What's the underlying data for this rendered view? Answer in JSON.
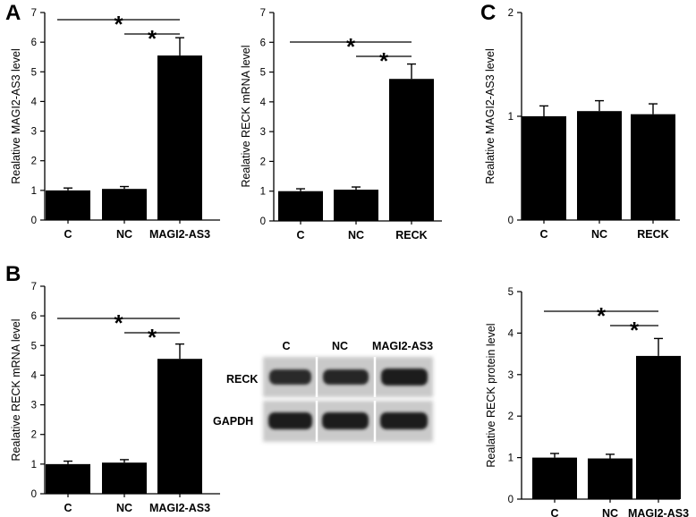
{
  "panels": [
    {
      "letter": "A"
    },
    {
      "letter": "B"
    },
    {
      "letter": "C"
    }
  ],
  "blot": {
    "lane_labels": [
      "C",
      "NC",
      "MAGI2-AS3"
    ],
    "row_labels": [
      "RECK",
      "GAPDH"
    ]
  },
  "chart_data": [
    {
      "type": "bar",
      "panel": "A",
      "categories": [
        "C",
        "NC",
        "MAGI2-AS3"
      ],
      "values": [
        1.0,
        1.05,
        5.55
      ],
      "errors": [
        0.08,
        0.08,
        0.6
      ],
      "ylabel": "Realative MAGI2-AS3 level",
      "ylim": [
        0,
        7
      ],
      "yticks": [
        0,
        1,
        2,
        3,
        4,
        5,
        6,
        7
      ],
      "significance": [
        {
          "from": 0,
          "to": 2,
          "label": "*"
        },
        {
          "from": 1,
          "to": 2,
          "label": "*"
        }
      ]
    },
    {
      "type": "bar",
      "panel": "A",
      "categories": [
        "C",
        "NC",
        "RECK"
      ],
      "values": [
        1.0,
        1.05,
        4.77
      ],
      "errors": [
        0.08,
        0.09,
        0.5
      ],
      "ylabel": "Realative RECK mRNA level",
      "ylim": [
        0,
        7
      ],
      "yticks": [
        0,
        1,
        2,
        3,
        4,
        5,
        6,
        7
      ],
      "significance": [
        {
          "from": 0,
          "to": 2,
          "label": "*"
        },
        {
          "from": 1,
          "to": 2,
          "label": "*"
        }
      ]
    },
    {
      "type": "bar",
      "panel": "C",
      "categories": [
        "C",
        "NC",
        "RECK"
      ],
      "values": [
        1.0,
        1.05,
        1.02
      ],
      "errors": [
        0.1,
        0.1,
        0.1
      ],
      "ylabel": "Realative MAGI2-AS3 level",
      "ylim": [
        0,
        2
      ],
      "yticks": [
        0,
        1,
        2
      ],
      "significance": []
    },
    {
      "type": "bar",
      "panel": "B",
      "categories": [
        "C",
        "NC",
        "MAGI2-AS3"
      ],
      "values": [
        1.0,
        1.05,
        4.55
      ],
      "errors": [
        0.1,
        0.1,
        0.5
      ],
      "ylabel": "Realative RECK mRNA level",
      "ylim": [
        0,
        7
      ],
      "yticks": [
        0,
        1,
        2,
        3,
        4,
        5,
        6,
        7
      ],
      "significance": [
        {
          "from": 0,
          "to": 2,
          "label": "*"
        },
        {
          "from": 1,
          "to": 2,
          "label": "*"
        }
      ]
    },
    {
      "type": "bar",
      "panel": "B",
      "categories": [
        "C",
        "NC",
        "MAGI2-AS3"
      ],
      "values": [
        1.0,
        0.98,
        3.45
      ],
      "errors": [
        0.1,
        0.1,
        0.42
      ],
      "ylabel": "Realative RECK protein level",
      "ylim": [
        0,
        5
      ],
      "yticks": [
        0,
        1,
        2,
        3,
        4,
        5
      ],
      "significance": [
        {
          "from": 0,
          "to": 2,
          "label": "*"
        },
        {
          "from": 1,
          "to": 2,
          "label": "*"
        }
      ]
    }
  ]
}
